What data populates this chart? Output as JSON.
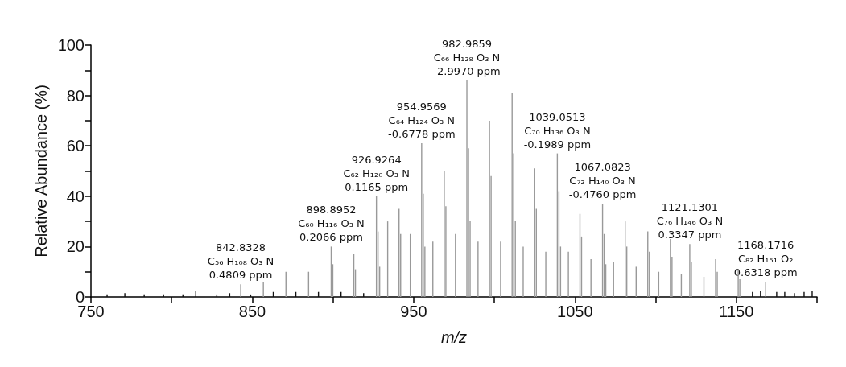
{
  "chart_data": {
    "type": "bar",
    "xlabel": "m/z",
    "ylabel": "Relative Abundance (%)",
    "xlim": [
      750,
      1200
    ],
    "xticks": [
      750,
      {
        "value": 800,
        "label": null
      },
      850,
      {
        "value": 900,
        "label": null
      },
      950,
      {
        "value": 1000,
        "label": null
      },
      1050,
      {
        "value": 1100,
        "label": null
      },
      1150,
      {
        "value": 1200,
        "label": null
      }
    ],
    "ylim": [
      0,
      100
    ],
    "yticks": [
      0,
      {
        "value": 10,
        "label": null
      },
      20,
      {
        "value": 30,
        "label": null
      },
      40,
      {
        "value": 50,
        "label": null
      },
      60,
      {
        "value": 70,
        "label": null
      },
      80,
      {
        "value": 90,
        "label": null
      },
      100
    ],
    "grid": false,
    "series": [
      {
        "color": "#999999",
        "x": [
          842.83,
          856.85,
          870.86,
          884.88,
          898.9,
          899.9,
          912.91,
          913.91,
          926.93,
          927.93,
          928.93,
          933.9,
          940.94,
          941.94,
          947.9,
          954.96,
          955.96,
          956.96,
          961.9,
          968.97,
          969.97,
          975.9,
          982.99,
          983.99,
          984.99,
          989.9,
          997.0,
          998.0,
          1003.9,
          1011.02,
          1012.02,
          1013.02,
          1017.9,
          1025.03,
          1026.03,
          1031.9,
          1039.05,
          1040.05,
          1041.05,
          1045.9,
          1053.07,
          1054.07,
          1059.9,
          1067.08,
          1068.08,
          1069.08,
          1073.9,
          1081.1,
          1082.1,
          1087.9,
          1095.11,
          1096.11,
          1101.9,
          1109.13,
          1110.13,
          1115.9,
          1121.13,
          1122.13,
          1129.9,
          1137.15,
          1138.15,
          1151.16,
          1152.16,
          1168.17
        ],
        "values": [
          5,
          6,
          10,
          10,
          20,
          13,
          17,
          11,
          40,
          26,
          12,
          30,
          35,
          25,
          25,
          61,
          41,
          20,
          22,
          50,
          36,
          25,
          86,
          59,
          30,
          22,
          70,
          48,
          22,
          81,
          57,
          30,
          20,
          51,
          35,
          18,
          57,
          42,
          20,
          18,
          33,
          24,
          15,
          37,
          25,
          13,
          14,
          30,
          20,
          12,
          26,
          18,
          10,
          23,
          16,
          9,
          21,
          14,
          8,
          15,
          10,
          11,
          7,
          6
        ]
      },
      {
        "color": "#111111",
        "x": [
          760,
          771,
          783,
          795,
          807,
          815,
          828,
          836,
          849,
          863,
          877,
          891,
          905,
          919,
          1160,
          1165,
          1175,
          1180,
          1186,
          1192,
          1197
        ],
        "values": [
          1,
          1.5,
          1,
          1,
          1,
          2.5,
          1,
          1.5,
          1,
          2,
          2,
          2,
          2,
          1.5,
          2,
          2.5,
          2,
          2,
          1.5,
          2,
          2.5
        ]
      }
    ],
    "annotations": [
      {
        "text": "842.8328\nC₅₆ H₁₀₈ O₃ N\n0.4809 ppm",
        "x": 842.83,
        "y": 5
      },
      {
        "text": "898.8952\nC₆₀ H₁₁₆ O₃ N\n0.2066 ppm",
        "x": 898.9,
        "y": 20
      },
      {
        "text": "926.9264\nC₆₂ H₁₂₀ O₃ N\n0.1165 ppm",
        "x": 926.93,
        "y": 40
      },
      {
        "text": "954.9569\nC₆₄ H₁₂₄ O₃ N\n-0.6778 ppm",
        "x": 954.96,
        "y": 61
      },
      {
        "text": "982.9859\nC₆₆ H₁₂₈ O₃ N\n-2.9970 ppm",
        "x": 982.99,
        "y": 86
      },
      {
        "text": "1039.0513\nC₇₀ H₁₃₆ O₃ N\n-0.1989 ppm",
        "x": 1039.05,
        "y": 57
      },
      {
        "text": "1067.0823\nC₇₂ H₁₄₀ O₃ N\n-0.4760 ppm",
        "x": 1067.08,
        "y": 37
      },
      {
        "text": "1121.1301\nC₇₆ H₁₄₆ O₃ N\n0.3347 ppm",
        "x": 1121.13,
        "y": 21
      },
      {
        "text": "1168.1716\nC₈₂ H₁₅₁ O₂\n0.6318 ppm",
        "x": 1168.17,
        "y": 6
      }
    ]
  }
}
